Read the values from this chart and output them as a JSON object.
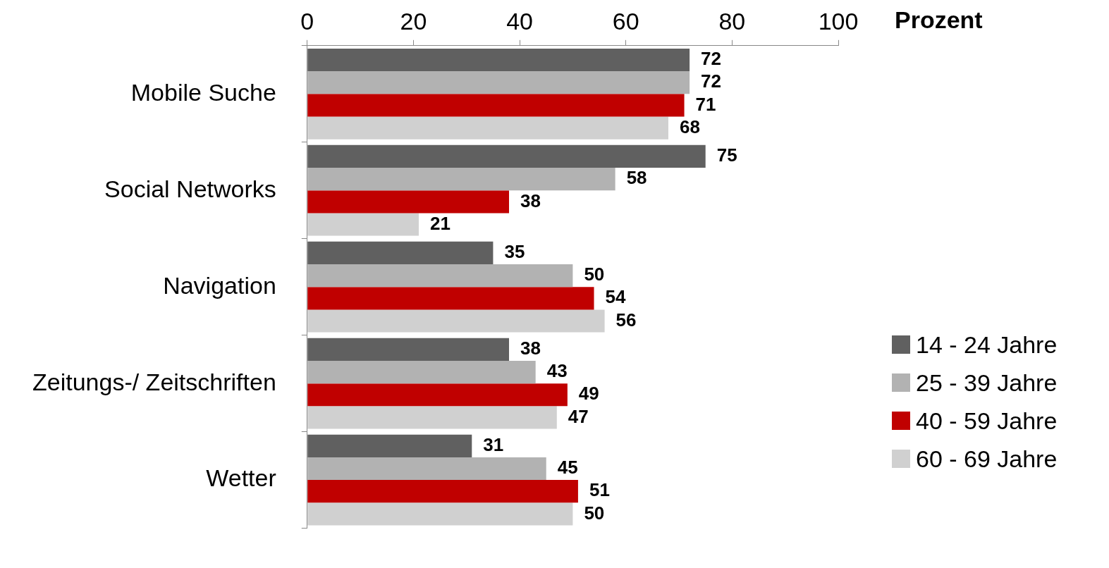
{
  "chart_data": {
    "type": "bar",
    "orientation": "horizontal",
    "xlabel": "Prozent",
    "categories": [
      "Mobile Suche",
      "Social Networks",
      "Navigation",
      "Zeitungs-/ Zeitschriften",
      "Wetter"
    ],
    "series": [
      {
        "name": "14 - 24 Jahre",
        "color": "#606060",
        "values": [
          72,
          75,
          35,
          38,
          31
        ]
      },
      {
        "name": "25 - 39 Jahre",
        "color": "#b2b2b2",
        "values": [
          72,
          58,
          50,
          43,
          45
        ]
      },
      {
        "name": "40 - 59 Jahre",
        "color": "#c00000",
        "values": [
          71,
          38,
          54,
          49,
          51
        ]
      },
      {
        "name": "60 - 69 Jahre",
        "color": "#d0d0d0",
        "values": [
          68,
          21,
          56,
          47,
          50
        ]
      }
    ],
    "xlim": [
      0,
      100
    ],
    "xticks": [
      0,
      20,
      40,
      60,
      80,
      100
    ],
    "data_labels": true,
    "legend": "right"
  }
}
